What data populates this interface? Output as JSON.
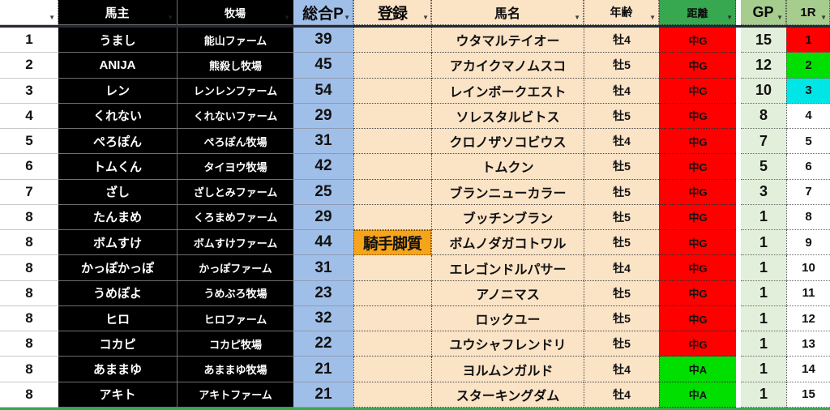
{
  "colors": {
    "header_green": "#38a850",
    "header_light_green": "#a6cc8e",
    "header_bottom_border": "#232936",
    "total_p_blue": "#a0bfe8",
    "beige": "#fbe3c6",
    "gp_cell_green": "#e2efda",
    "registration_orange": "#f6a41c",
    "distance_red": "#fe0000",
    "distance_green": "#00df00",
    "r1_red": "#fe0000",
    "r1_green": "#00df00",
    "r1_cyan": "#00e5e5",
    "black_cell": "#000000"
  },
  "icons": {
    "filter": "▼"
  },
  "table": {
    "columns": [
      {
        "key": "rank",
        "label": ""
      },
      {
        "key": "owner",
        "label": "馬主"
      },
      {
        "key": "farm",
        "label": "牧場"
      },
      {
        "key": "total_p",
        "label": "総合P"
      },
      {
        "key": "registration",
        "label": "登録"
      },
      {
        "key": "horse",
        "label": "馬名"
      },
      {
        "key": "age",
        "label": "年齢"
      },
      {
        "key": "distance",
        "label": "距離"
      },
      {
        "key": "gp",
        "label": "GP"
      },
      {
        "key": "r1",
        "label": "1R"
      }
    ],
    "rows": [
      {
        "rank": "1",
        "owner": "うまし",
        "farm": "能山ファーム",
        "total_p": "39",
        "registration": "",
        "horse": "ウタマルテイオー",
        "age": "牡4",
        "distance": "中G",
        "distance_color": "#fe0000",
        "gp": "15",
        "r1": "1",
        "r1_color": "#fe0000"
      },
      {
        "rank": "2",
        "owner": "ANIJA",
        "farm": "熊殺し牧場",
        "total_p": "45",
        "registration": "",
        "horse": "アカイクマノムスコ",
        "age": "牡5",
        "distance": "中G",
        "distance_color": "#fe0000",
        "gp": "12",
        "r1": "2",
        "r1_color": "#00df00"
      },
      {
        "rank": "3",
        "owner": "レン",
        "farm": "レンレンファーム",
        "total_p": "54",
        "registration": "",
        "horse": "レインボークエスト",
        "age": "牡4",
        "distance": "中G",
        "distance_color": "#fe0000",
        "gp": "10",
        "r1": "3",
        "r1_color": "#00e5e5"
      },
      {
        "rank": "4",
        "owner": "くれない",
        "farm": "くれないファーム",
        "total_p": "29",
        "registration": "",
        "horse": "ソレスタルビトス",
        "age": "牡5",
        "distance": "中G",
        "distance_color": "#fe0000",
        "gp": "8",
        "r1": "4",
        "r1_color": "#ffffff"
      },
      {
        "rank": "5",
        "owner": "ぺろぽん",
        "farm": "ぺろぽん牧場",
        "total_p": "31",
        "registration": "",
        "horse": "クロノザソコビウス",
        "age": "牡4",
        "distance": "中G",
        "distance_color": "#fe0000",
        "gp": "7",
        "r1": "5",
        "r1_color": "#ffffff"
      },
      {
        "rank": "6",
        "owner": "トムくん",
        "farm": "タイヨウ牧場",
        "total_p": "42",
        "registration": "",
        "horse": "トムクン",
        "age": "牡5",
        "distance": "中G",
        "distance_color": "#fe0000",
        "gp": "5",
        "r1": "6",
        "r1_color": "#ffffff"
      },
      {
        "rank": "7",
        "owner": "ざし",
        "farm": "ざしとみファーム",
        "total_p": "25",
        "registration": "",
        "horse": "ブランニューカラー",
        "age": "牡5",
        "distance": "中G",
        "distance_color": "#fe0000",
        "gp": "3",
        "r1": "7",
        "r1_color": "#ffffff"
      },
      {
        "rank": "8",
        "owner": "たんまめ",
        "farm": "くろまめファーム",
        "total_p": "29",
        "registration": "",
        "horse": "ブッチンブラン",
        "age": "牡5",
        "distance": "中G",
        "distance_color": "#fe0000",
        "gp": "1",
        "r1": "8",
        "r1_color": "#ffffff"
      },
      {
        "rank": "8",
        "owner": "ボムすけ",
        "farm": "ボムすけファーム",
        "total_p": "44",
        "registration": "騎手脚質",
        "horse": "ボムノダガコトワル",
        "age": "牡5",
        "distance": "中G",
        "distance_color": "#fe0000",
        "gp": "1",
        "r1": "9",
        "r1_color": "#ffffff"
      },
      {
        "rank": "8",
        "owner": "かっぽかっぽ",
        "farm": "かっぽファーム",
        "total_p": "31",
        "registration": "",
        "horse": "エレゴンドルパサー",
        "age": "牡4",
        "distance": "中G",
        "distance_color": "#fe0000",
        "gp": "1",
        "r1": "10",
        "r1_color": "#ffffff"
      },
      {
        "rank": "8",
        "owner": "うめぽよ",
        "farm": "うめぶろ牧場",
        "total_p": "23",
        "registration": "",
        "horse": "アノニマス",
        "age": "牡5",
        "distance": "中G",
        "distance_color": "#fe0000",
        "gp": "1",
        "r1": "11",
        "r1_color": "#ffffff"
      },
      {
        "rank": "8",
        "owner": "ヒロ",
        "farm": "ヒロファーム",
        "total_p": "32",
        "registration": "",
        "horse": "ロックユー",
        "age": "牡5",
        "distance": "中G",
        "distance_color": "#fe0000",
        "gp": "1",
        "r1": "12",
        "r1_color": "#ffffff"
      },
      {
        "rank": "8",
        "owner": "コカピ",
        "farm": "コカピ牧場",
        "total_p": "22",
        "registration": "",
        "horse": "ユウシャフレンドリ",
        "age": "牡5",
        "distance": "中G",
        "distance_color": "#fe0000",
        "gp": "1",
        "r1": "13",
        "r1_color": "#ffffff"
      },
      {
        "rank": "8",
        "owner": "あままゆ",
        "farm": "あままゆ牧場",
        "total_p": "21",
        "registration": "",
        "horse": "ヨルムンガルド",
        "age": "牡4",
        "distance": "中A",
        "distance_color": "#00df00",
        "gp": "1",
        "r1": "14",
        "r1_color": "#ffffff"
      },
      {
        "rank": "8",
        "owner": "アキト",
        "farm": "アキトファーム",
        "total_p": "21",
        "registration": "",
        "horse": "スターキングダム",
        "age": "牡4",
        "distance": "中A",
        "distance_color": "#00df00",
        "gp": "1",
        "r1": "15",
        "r1_color": "#ffffff"
      }
    ]
  }
}
